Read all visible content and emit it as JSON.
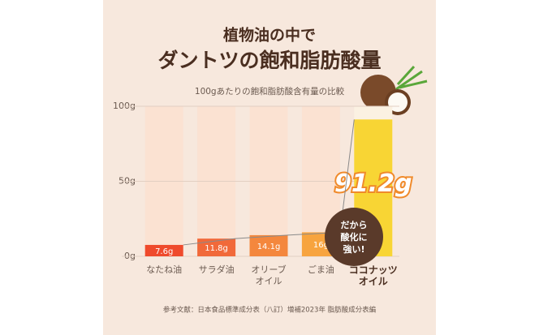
{
  "chart_data": {
    "type": "bar",
    "title": "植物油の中で",
    "subtitle": "ダントツの飽和脂肪酸量",
    "y_label": "100gあたりの飽和脂肪酸含有量の比較",
    "categories": [
      "なたね油",
      "サラダ油",
      "オリーブ\nオイル",
      "ごま油",
      "ココナッツ\nオイル"
    ],
    "values": [
      7.6,
      11.8,
      14.1,
      16,
      91.2
    ],
    "value_labels": [
      "7.6g",
      "11.8g",
      "14.1g",
      "16g",
      "91.2g"
    ],
    "colors": [
      "#ef4a2c",
      "#f1693a",
      "#f4873d",
      "#f7a43f",
      "#f8d534"
    ],
    "ylim": [
      0,
      100
    ],
    "yticks": [
      {
        "value": 0,
        "label": "0g"
      },
      {
        "value": 50,
        "label": "50g"
      },
      {
        "value": 100,
        "label": "100g"
      }
    ],
    "grid": true,
    "annotation": "だから\n酸化に\n強い!",
    "source": "参考文献：日本食品標準成分表（八訂）増補2023年 脂肪酸成分表編"
  }
}
